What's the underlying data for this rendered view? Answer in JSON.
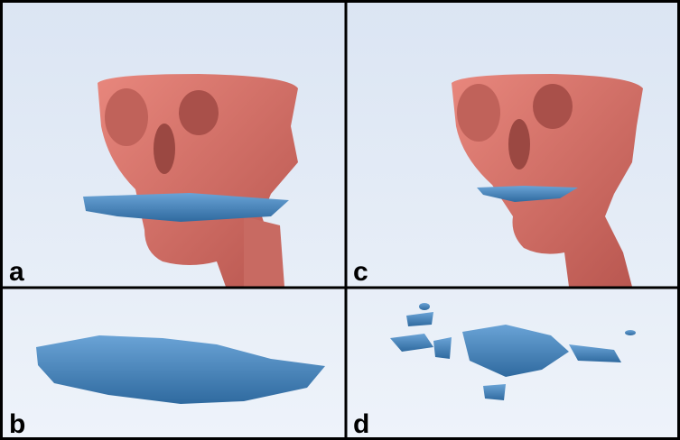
{
  "panels": [
    {
      "label": "a"
    },
    {
      "label": "c"
    },
    {
      "label": "b"
    },
    {
      "label": "d"
    }
  ]
}
